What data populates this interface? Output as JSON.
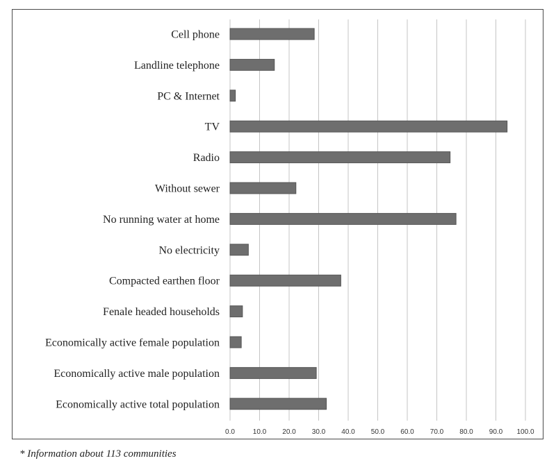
{
  "chart_data": {
    "type": "bar",
    "orientation": "horizontal",
    "categories": [
      "Cell phone",
      "Landline telephone",
      "PC & Internet",
      "TV",
      "Radio",
      "Without sewer",
      "No running water at home",
      "No electricity",
      "Compacted earthen floor",
      "Fenale headed households",
      "Economically active female population",
      "Economically active male population",
      "Economically active total population"
    ],
    "values": [
      28.5,
      15.0,
      1.8,
      93.8,
      74.5,
      22.3,
      76.5,
      6.2,
      37.5,
      4.2,
      3.8,
      29.2,
      32.6
    ],
    "xlim": [
      0,
      100
    ],
    "xticks": [
      "0.0",
      "10.0",
      "20.0",
      "30.0",
      "40.0",
      "50.0",
      "60.0",
      "70.0",
      "80.0",
      "90.0",
      "100.0"
    ],
    "grid": true,
    "bar_color": "#6e6e6e"
  },
  "footnote": "* Information about 113 communities"
}
